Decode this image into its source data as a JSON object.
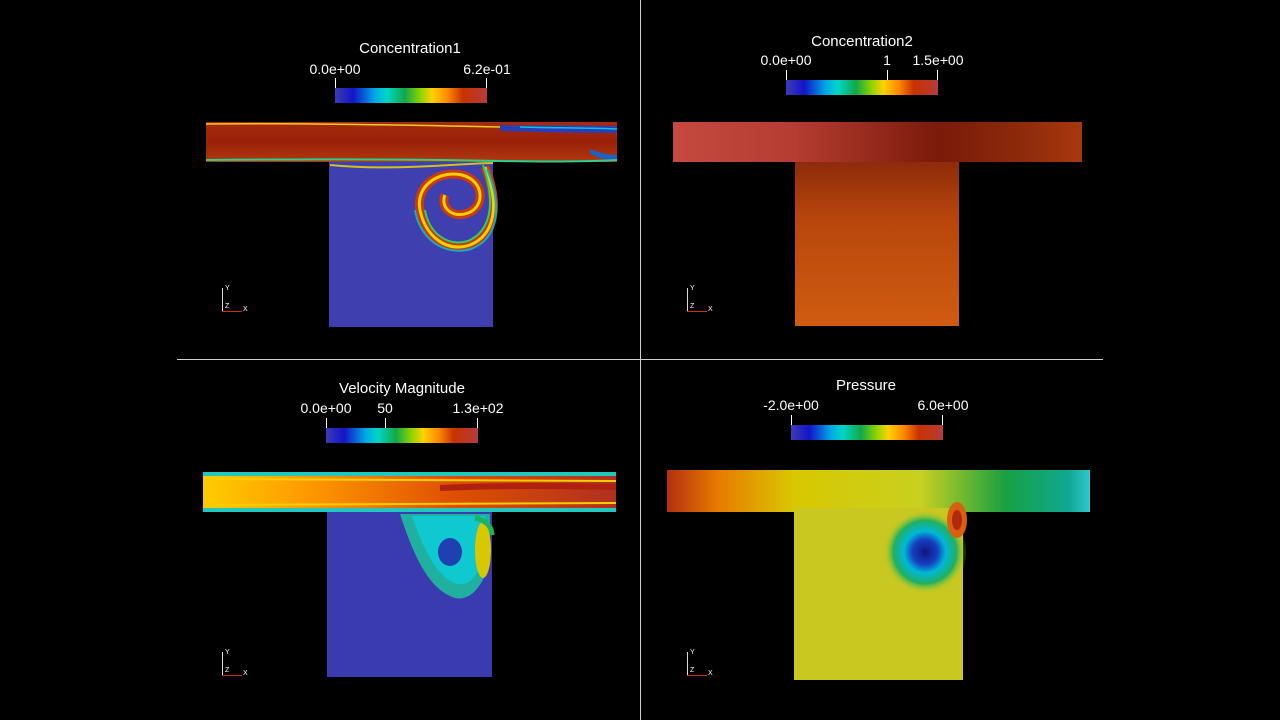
{
  "panels": {
    "concentration1": {
      "title": "Concentration1",
      "min_label": "0.0e+00",
      "max_label": "6.2e-01"
    },
    "concentration2": {
      "title": "Concentration2",
      "min_label": "0.0e+00",
      "mid_label": "1",
      "max_label": "1.5e+00"
    },
    "velocity": {
      "title": "Velocity Magnitude",
      "min_label": "0.0e+00",
      "mid_label": "50",
      "max_label": "1.3e+02"
    },
    "pressure": {
      "title": "Pressure",
      "min_label": "-2.0e+00",
      "max_label": "6.0e+00"
    }
  },
  "axes_labels": {
    "y": "Y",
    "z": "Z",
    "x": "X"
  },
  "colors": {
    "background": "#000000",
    "low": "#3b3bb3",
    "high": "#b43c3c"
  }
}
